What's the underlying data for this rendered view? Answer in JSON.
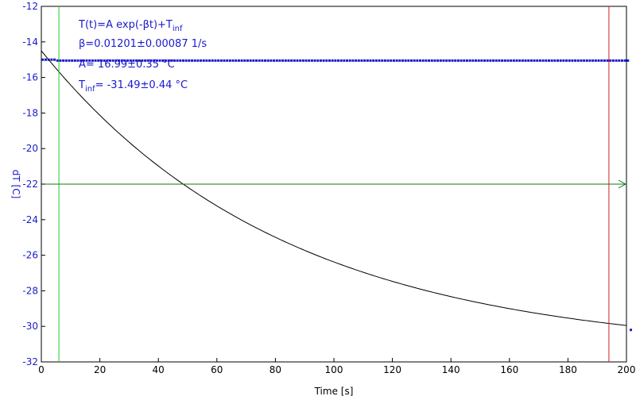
{
  "chart_data": {
    "type": "scatter",
    "xlabel": "Time [s]",
    "ylabel": "dT [C]",
    "xlim": [
      0,
      200
    ],
    "ylim": [
      -32,
      -12
    ],
    "xticks": [
      "0",
      "20",
      "40",
      "60",
      "80",
      "100",
      "120",
      "140",
      "160",
      "180",
      "200"
    ],
    "yticks": [
      "-12",
      "-14",
      "-16",
      "-18",
      "-20",
      "-22",
      "-24",
      "-26",
      "-28",
      "-30",
      "-32"
    ],
    "grid": false,
    "fit": {
      "formula_main": "T(t)=A exp(-βt)+T",
      "formula_sub": "inf",
      "beta": "β=0.01201±0.00087 1/s",
      "A": "A= 16.99±0.35 °C",
      "tinf_main": "T",
      "tinf_sub": "inf",
      "tinf_rest": "= -31.49±0.44 °C",
      "params": {
        "A": 16.99,
        "beta": 0.01201,
        "Tinf": -31.49
      }
    },
    "data_points": {
      "plateau": {
        "x_start": 0.5,
        "x_end": 4.5,
        "y": -15.0
      },
      "x_start": 5.5,
      "x_end": 201.5,
      "x_step": 1.0,
      "final_point": [
        201.5,
        -30.2
      ]
    },
    "markers": {
      "vertical_left_x": 6,
      "vertical_right_x": 194,
      "horizontal_y": -22
    },
    "colors": {
      "data": "#1a1acc",
      "fit": "#000000",
      "axis_labels": "#1a1acc",
      "left_marker": "#22cc22",
      "right_marker": "#cc2222",
      "horizontal_marker": "#117711"
    }
  }
}
